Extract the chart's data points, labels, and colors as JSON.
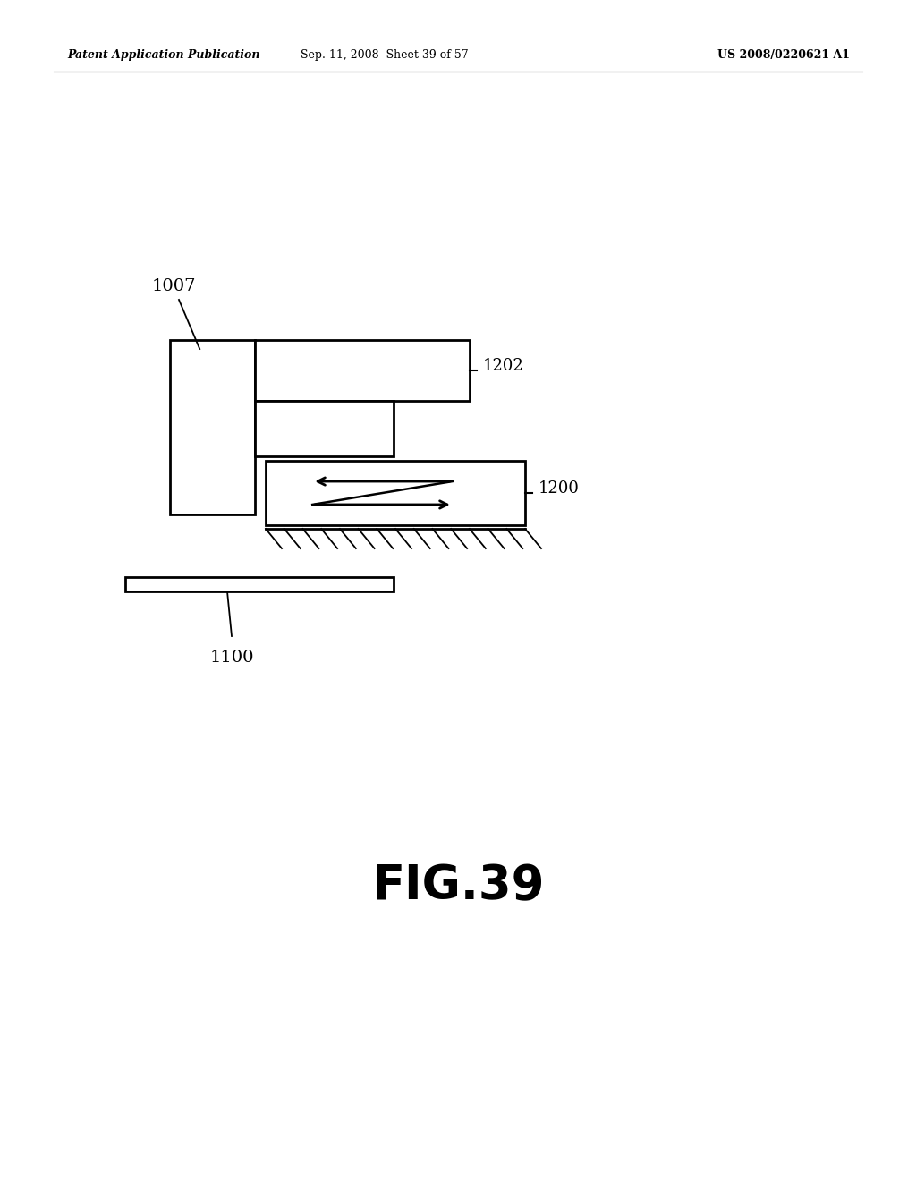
{
  "bg_color": "#ffffff",
  "line_color": "#000000",
  "header_left": "Patent Application Publication",
  "header_mid": "Sep. 11, 2008  Sheet 39 of 57",
  "header_right": "US 2008/0220621 A1",
  "fig_label": "FIG.39",
  "label_1007": "1007",
  "label_1202": "1202",
  "label_1200": "1200",
  "label_1100": "1100",
  "lw": 2.0
}
